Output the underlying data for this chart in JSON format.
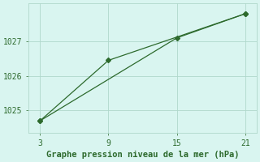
{
  "line1_x": [
    3,
    9,
    21
  ],
  "line1_y": [
    1024.7,
    1026.45,
    1027.8
  ],
  "line2_x": [
    3,
    15,
    21
  ],
  "line2_y": [
    1024.7,
    1027.1,
    1027.8
  ],
  "line_color": "#2d6a2d",
  "marker": "D",
  "markersize": 3,
  "xlabel": "Graphe pression niveau de la mer (hPa)",
  "xlim": [
    2.0,
    22.0
  ],
  "ylim": [
    1024.35,
    1028.1
  ],
  "xticks": [
    3,
    9,
    15,
    21
  ],
  "yticks": [
    1025,
    1026,
    1027
  ],
  "bg_color": "#d9f5f0",
  "grid_color": "#b0d8cc",
  "tick_fontsize": 7,
  "label_fontsize": 7.5
}
